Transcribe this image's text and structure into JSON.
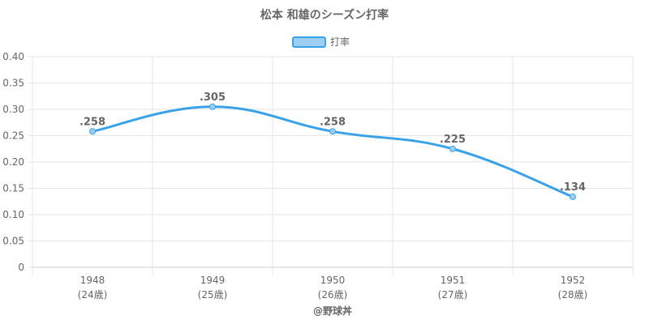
{
  "chart_data": {
    "type": "line",
    "title": "松本 和雄のシーズン打率",
    "categories": [
      "1948",
      "1949",
      "1950",
      "1951",
      "1952"
    ],
    "category_sublabels": [
      "(24歳)",
      "(25歳)",
      "(26歳)",
      "(27歳)",
      "(28歳)"
    ],
    "series": [
      {
        "name": "打率",
        "values": [
          0.258,
          0.305,
          0.258,
          0.225,
          0.134
        ],
        "labels": [
          ".258",
          ".305",
          ".258",
          ".225",
          ".134"
        ],
        "color": "#3ba2e8",
        "fill": "#9ccff2"
      }
    ],
    "y_ticks": [
      "0",
      "0.05",
      "0.10",
      "0.15",
      "0.20",
      "0.25",
      "0.30",
      "0.35",
      "0.40"
    ],
    "ylim": [
      0,
      0.4
    ],
    "xlabel": "",
    "ylabel": "",
    "legend_position": "top-center",
    "grid": true,
    "source": "@野球丼"
  }
}
